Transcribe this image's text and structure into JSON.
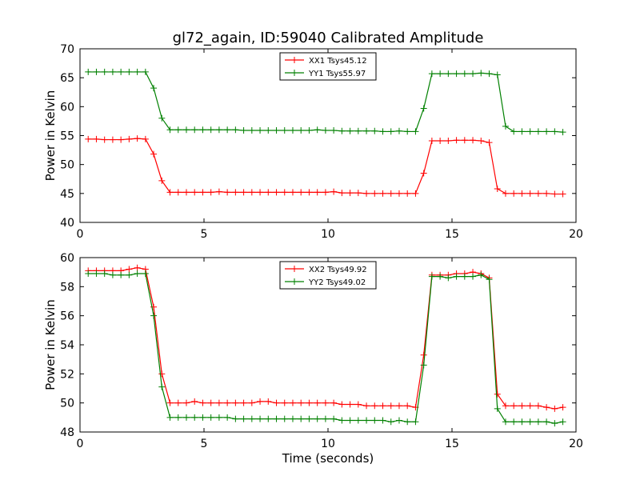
{
  "figure": {
    "title": "gl72_again, ID:59040 Calibrated Amplitude",
    "xlabel": "Time (seconds)"
  },
  "chart_data": [
    {
      "type": "line",
      "ylabel": "Power in Kelvin",
      "xlim": [
        0,
        20
      ],
      "ylim": [
        40,
        70
      ],
      "xticks": [
        0,
        5,
        10,
        15,
        20
      ],
      "yticks": [
        40,
        45,
        50,
        55,
        60,
        65,
        70
      ],
      "grid": false,
      "legend_position": "top-center",
      "x": [
        0.33,
        0.66,
        0.99,
        1.32,
        1.65,
        1.98,
        2.31,
        2.64,
        2.97,
        3.3,
        3.63,
        3.96,
        4.29,
        4.62,
        4.95,
        5.28,
        5.61,
        5.94,
        6.27,
        6.6,
        6.93,
        7.26,
        7.59,
        7.92,
        8.25,
        8.58,
        8.91,
        9.24,
        9.57,
        9.9,
        10.23,
        10.56,
        10.89,
        11.22,
        11.55,
        11.88,
        12.21,
        12.54,
        12.87,
        13.2,
        13.53,
        13.86,
        14.19,
        14.52,
        14.85,
        15.18,
        15.51,
        15.84,
        16.17,
        16.5,
        16.83,
        17.16,
        17.49,
        17.82,
        18.15,
        18.48,
        18.81,
        19.14,
        19.47
      ],
      "series": [
        {
          "name": "XX1 Tsys45.12",
          "color": "#ff0000",
          "values": [
            54.4,
            54.4,
            54.3,
            54.3,
            54.3,
            54.4,
            54.5,
            54.4,
            51.8,
            47.2,
            45.2,
            45.2,
            45.2,
            45.2,
            45.2,
            45.2,
            45.3,
            45.2,
            45.2,
            45.2,
            45.2,
            45.2,
            45.2,
            45.2,
            45.2,
            45.2,
            45.2,
            45.2,
            45.2,
            45.2,
            45.3,
            45.1,
            45.1,
            45.1,
            45.0,
            45.0,
            45.0,
            45.0,
            45.0,
            45.0,
            45.0,
            48.5,
            54.1,
            54.1,
            54.1,
            54.2,
            54.2,
            54.2,
            54.1,
            53.8,
            45.8,
            45.0,
            45.0,
            45.0,
            45.0,
            45.0,
            45.0,
            44.9,
            44.9
          ]
        },
        {
          "name": "YY1 Tsys55.97",
          "color": "#008000",
          "values": [
            66.0,
            66.0,
            66.0,
            66.0,
            66.0,
            66.0,
            66.0,
            66.0,
            63.2,
            58.0,
            56.0,
            56.0,
            56.0,
            56.0,
            56.0,
            56.0,
            56.0,
            56.0,
            56.0,
            55.9,
            55.9,
            55.9,
            55.9,
            55.9,
            55.9,
            55.9,
            55.9,
            55.9,
            56.0,
            55.9,
            55.9,
            55.8,
            55.8,
            55.8,
            55.8,
            55.8,
            55.7,
            55.7,
            55.8,
            55.7,
            55.7,
            59.7,
            65.7,
            65.7,
            65.7,
            65.7,
            65.7,
            65.7,
            65.8,
            65.7,
            65.5,
            56.6,
            55.7,
            55.7,
            55.7,
            55.7,
            55.7,
            55.7,
            55.6
          ]
        }
      ]
    },
    {
      "type": "line",
      "ylabel": "Power in Kelvin",
      "xlabel": "Time (seconds)",
      "xlim": [
        0,
        20
      ],
      "ylim": [
        48,
        60
      ],
      "xticks": [
        0,
        5,
        10,
        15,
        20
      ],
      "yticks": [
        48,
        50,
        52,
        54,
        56,
        58,
        60
      ],
      "grid": false,
      "legend_position": "top-center",
      "x": [
        0.33,
        0.66,
        0.99,
        1.32,
        1.65,
        1.98,
        2.31,
        2.64,
        2.97,
        3.3,
        3.63,
        3.96,
        4.29,
        4.62,
        4.95,
        5.28,
        5.61,
        5.94,
        6.27,
        6.6,
        6.93,
        7.26,
        7.59,
        7.92,
        8.25,
        8.58,
        8.91,
        9.24,
        9.57,
        9.9,
        10.23,
        10.56,
        10.89,
        11.22,
        11.55,
        11.88,
        12.21,
        12.54,
        12.87,
        13.2,
        13.53,
        13.86,
        14.19,
        14.52,
        14.85,
        15.18,
        15.51,
        15.84,
        16.17,
        16.5,
        16.83,
        17.16,
        17.49,
        17.82,
        18.15,
        18.48,
        18.81,
        19.14,
        19.47
      ],
      "series": [
        {
          "name": "XX2 Tsys49.92",
          "color": "#ff0000",
          "values": [
            59.1,
            59.1,
            59.1,
            59.1,
            59.1,
            59.2,
            59.3,
            59.2,
            56.6,
            52.0,
            50.0,
            50.0,
            50.0,
            50.1,
            50.0,
            50.0,
            50.0,
            50.0,
            50.0,
            50.0,
            50.0,
            50.1,
            50.1,
            50.0,
            50.0,
            50.0,
            50.0,
            50.0,
            50.0,
            50.0,
            50.0,
            49.9,
            49.9,
            49.9,
            49.8,
            49.8,
            49.8,
            49.8,
            49.8,
            49.8,
            49.7,
            53.3,
            58.8,
            58.8,
            58.8,
            58.9,
            58.9,
            59.0,
            58.9,
            58.6,
            50.6,
            49.8,
            49.8,
            49.8,
            49.8,
            49.8,
            49.7,
            49.6,
            49.7
          ]
        },
        {
          "name": "YY2 Tsys49.02",
          "color": "#008000",
          "values": [
            58.9,
            58.9,
            58.9,
            58.8,
            58.8,
            58.8,
            58.9,
            58.9,
            56.0,
            51.1,
            49.0,
            49.0,
            49.0,
            49.0,
            49.0,
            49.0,
            49.0,
            49.0,
            48.9,
            48.9,
            48.9,
            48.9,
            48.9,
            48.9,
            48.9,
            48.9,
            48.9,
            48.9,
            48.9,
            48.9,
            48.9,
            48.8,
            48.8,
            48.8,
            48.8,
            48.8,
            48.8,
            48.7,
            48.8,
            48.7,
            48.7,
            52.6,
            58.7,
            58.7,
            58.6,
            58.7,
            58.7,
            58.7,
            58.8,
            58.5,
            49.6,
            48.7,
            48.7,
            48.7,
            48.7,
            48.7,
            48.7,
            48.6,
            48.7
          ]
        }
      ]
    }
  ]
}
